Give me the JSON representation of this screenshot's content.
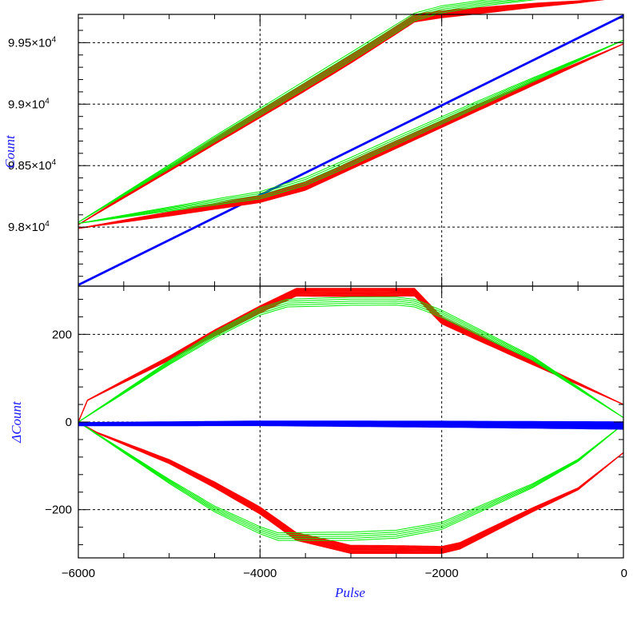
{
  "chart_data": [
    {
      "type": "line",
      "panel": "top",
      "ylabel": "Count",
      "xlim": [
        -6000,
        0
      ],
      "ylim": [
        97520,
        99730
      ],
      "grid": true,
      "yticks": [
        {
          "value": 98000,
          "mantissa": "9.8",
          "exp": "4"
        },
        {
          "value": 98500,
          "mantissa": "9.85",
          "exp": "4"
        },
        {
          "value": 99000,
          "mantissa": "9.9",
          "exp": "4"
        },
        {
          "value": 99500,
          "mantissa": "9.95",
          "exp": "4"
        }
      ],
      "series": [
        {
          "color": "#0000ff",
          "kind": "linear",
          "x": [
            -6000,
            0
          ],
          "y": [
            97530,
            99720
          ],
          "copies": 3
        },
        {
          "color": "#ff0000",
          "kind": "loop",
          "copies": 14,
          "upper": {
            "x": [
              -6000,
              -4500,
              -3000,
              -2300,
              -2000,
              -1500,
              -1000,
              -500,
              0
            ],
            "y": [
              98020,
              98720,
              99400,
              99730,
              99760,
              99790,
              99820,
              99840,
              99870
            ]
          },
          "lower": {
            "x": [
              -6000,
              -5000,
              -4000,
              -3500,
              -3000,
              -2500,
              -2000,
              -1500,
              -1000,
              -500,
              0
            ],
            "y": [
              97990,
              98090,
              98200,
              98300,
              98470,
              98640,
              98810,
              98980,
              99150,
              99320,
              99490
            ]
          }
        },
        {
          "color": "#00ee00",
          "kind": "loop",
          "copies": 5,
          "upper": {
            "x": [
              -6000,
              -4500,
              -3000,
              -2300,
              -2000,
              -1500,
              -1000,
              -500,
              0
            ],
            "y": [
              98040,
              98740,
              99420,
              99740,
              99800,
              99850,
              99880,
              99900,
              99920
            ]
          },
          "lower": {
            "x": [
              -6000,
              -5000,
              -4000,
              -3500,
              -3000,
              -2500,
              -2000,
              -1500,
              -1000,
              -500,
              0
            ],
            "y": [
              98030,
              98130,
              98230,
              98340,
              98500,
              98670,
              98840,
              99010,
              99180,
              99350,
              99520
            ]
          }
        }
      ]
    },
    {
      "type": "line",
      "panel": "bottom",
      "xlabel": "Pulse",
      "ylabel": "ΔCount",
      "xlim": [
        -6000,
        0
      ],
      "ylim": [
        -310,
        310
      ],
      "grid": true,
      "xticks": [
        {
          "value": -6000,
          "label": "−6000"
        },
        {
          "value": -4000,
          "label": "−4000"
        },
        {
          "value": -2000,
          "label": "−2000"
        },
        {
          "value": 0,
          "label": "0"
        }
      ],
      "yticks": [
        {
          "value": -200,
          "label": "−200"
        },
        {
          "value": 0,
          "label": "0"
        },
        {
          "value": 200,
          "label": "200"
        }
      ],
      "series": [
        {
          "color": "#ff0000",
          "kind": "loop",
          "copies": 14,
          "upper": {
            "x": [
              -6000,
              -5900,
              -5500,
              -5000,
              -4500,
              -4000,
              -3600,
              -3000,
              -2500,
              -2300,
              -2000,
              -1000,
              0
            ],
            "y": [
              0,
              50,
              95,
              150,
              210,
              265,
              305,
              305,
              305,
              305,
              240,
              140,
              40
            ]
          },
          "lower": {
            "x": [
              -6000,
              -5800,
              -5000,
              -4500,
              -4000,
              -3600,
              -3000,
              -2500,
              -2000,
              -1800,
              -1000,
              -500,
              0
            ],
            "y": [
              0,
              -25,
              -95,
              -150,
              -210,
              -270,
              -300,
              -300,
              -300,
              -290,
              -205,
              -155,
              -70
            ]
          }
        },
        {
          "color": "#00ee00",
          "kind": "loop",
          "copies": 5,
          "upper": {
            "x": [
              -6000,
              -5500,
              -5000,
              -4500,
              -4000,
              -3700,
              -3000,
              -2500,
              -2300,
              -2000,
              -1000,
              0
            ],
            "y": [
              0,
              70,
              140,
              205,
              260,
              280,
              285,
              285,
              280,
              255,
              150,
              10
            ]
          },
          "lower": {
            "x": [
              -6000,
              -5500,
              -5000,
              -4500,
              -4000,
              -3800,
              -3000,
              -2500,
              -2000,
              -1000,
              -500,
              0
            ],
            "y": [
              0,
              -70,
              -140,
              -205,
              -255,
              -270,
              -270,
              -265,
              -245,
              -150,
              -90,
              -5
            ]
          }
        },
        {
          "color": "#0000ff",
          "kind": "band",
          "copies": 9,
          "x": [
            -6000,
            -4000,
            -2000,
            0
          ],
          "y": [
            -5,
            -3,
            -5,
            -8
          ]
        }
      ]
    }
  ]
}
